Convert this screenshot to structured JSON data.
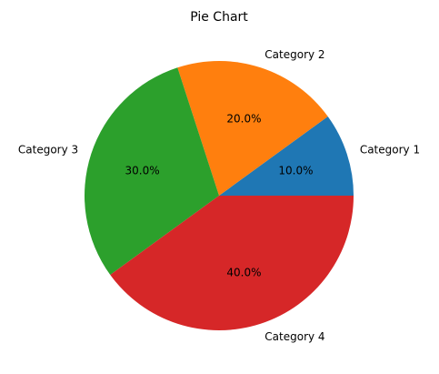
{
  "chart_data": {
    "type": "pie",
    "title": "Pie Chart",
    "categories": [
      "Category 1",
      "Category 2",
      "Category 3",
      "Category 4"
    ],
    "values": [
      10,
      20,
      30,
      40
    ],
    "percent_labels": [
      "10.0%",
      "20.0%",
      "30.0%",
      "40.0%"
    ],
    "colors": [
      "#1f77b4",
      "#ff7f0e",
      "#2ca02c",
      "#d62728"
    ],
    "start_angle_deg": 0,
    "direction": "counterclockwise",
    "legend": "none"
  }
}
